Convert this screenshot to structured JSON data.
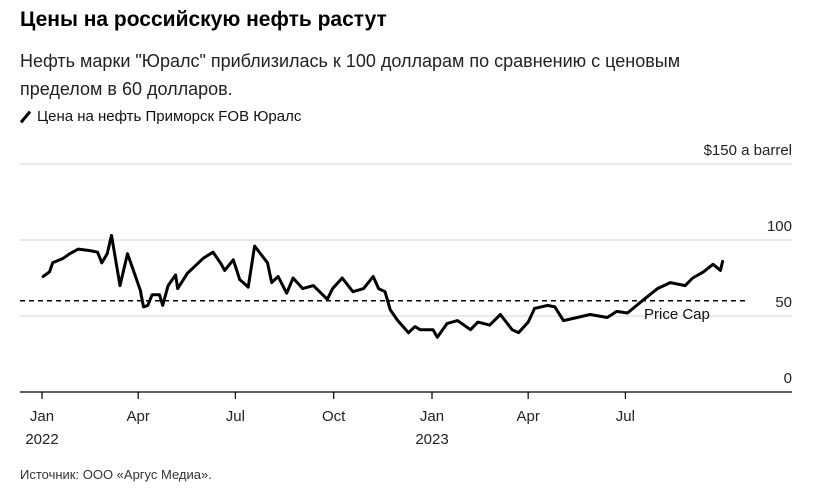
{
  "title": "Цены на российскую нефть растут",
  "subtitle": "Нефть марки \"Юралс\" приблизилась к 100 долларам по сравнению с ценовым пределом в 60 долларов.",
  "source": "Источник: ООО «Аргус Медиа».",
  "chart_data": {
    "type": "line",
    "title": "Цены на российскую нефть растут",
    "legend": [
      "Цена на нефть Приморск FOB Юралс"
    ],
    "legend_placement": "top-left",
    "y_unit_label": "$150 a barrel",
    "ylim": [
      0,
      150
    ],
    "y_ticks": [
      {
        "value": 150,
        "label": "$150 a barrel"
      },
      {
        "value": 100,
        "label": "100"
      },
      {
        "value": 50,
        "label": "50"
      },
      {
        "value": 0,
        "label": "0"
      }
    ],
    "xlim": [
      "2022-01-01",
      "2023-10-31"
    ],
    "x_ticks": [
      {
        "date": "2022-01-01",
        "label": "Jan",
        "year": "2022"
      },
      {
        "date": "2022-04-01",
        "label": "Apr",
        "year": ""
      },
      {
        "date": "2022-07-01",
        "label": "Jul",
        "year": ""
      },
      {
        "date": "2022-10-01",
        "label": "Oct",
        "year": ""
      },
      {
        "date": "2023-01-01",
        "label": "Jan",
        "year": "2023"
      },
      {
        "date": "2023-04-01",
        "label": "Apr",
        "year": ""
      },
      {
        "date": "2023-07-01",
        "label": "Jul",
        "year": ""
      }
    ],
    "grid": true,
    "reference_line": {
      "label": "Price Cap",
      "value": 60,
      "style": "dashed"
    },
    "series": [
      {
        "name": "Цена на нефть Приморск FOB Юралс",
        "color": "#000000",
        "points": [
          [
            "2022-01-02",
            76
          ],
          [
            "2022-01-08",
            79
          ],
          [
            "2022-01-11",
            85
          ],
          [
            "2022-01-21",
            88
          ],
          [
            "2022-01-27",
            91
          ],
          [
            "2022-02-04",
            94
          ],
          [
            "2022-02-15",
            93
          ],
          [
            "2022-02-22",
            92
          ],
          [
            "2022-02-26",
            85
          ],
          [
            "2022-03-03",
            91
          ],
          [
            "2022-03-07",
            103
          ],
          [
            "2022-03-15",
            70
          ],
          [
            "2022-03-22",
            91
          ],
          [
            "2022-03-29",
            77
          ],
          [
            "2022-04-03",
            67
          ],
          [
            "2022-04-06",
            56
          ],
          [
            "2022-04-10",
            57
          ],
          [
            "2022-04-14",
            64
          ],
          [
            "2022-04-21",
            64
          ],
          [
            "2022-04-24",
            57
          ],
          [
            "2022-04-29",
            70
          ],
          [
            "2022-05-06",
            77
          ],
          [
            "2022-05-08",
            68
          ],
          [
            "2022-05-17",
            78
          ],
          [
            "2022-05-26",
            84
          ],
          [
            "2022-06-01",
            88
          ],
          [
            "2022-06-10",
            92
          ],
          [
            "2022-06-17",
            85
          ],
          [
            "2022-06-21",
            80
          ],
          [
            "2022-06-29",
            87
          ],
          [
            "2022-07-05",
            74
          ],
          [
            "2022-07-13",
            69
          ],
          [
            "2022-07-19",
            96
          ],
          [
            "2022-07-31",
            85
          ],
          [
            "2022-08-04",
            72
          ],
          [
            "2022-08-10",
            76
          ],
          [
            "2022-08-18",
            65
          ],
          [
            "2022-08-24",
            75
          ],
          [
            "2022-09-02",
            68
          ],
          [
            "2022-09-12",
            70
          ],
          [
            "2022-09-25",
            61
          ],
          [
            "2022-09-30",
            68
          ],
          [
            "2022-10-09",
            75
          ],
          [
            "2022-10-19",
            66
          ],
          [
            "2022-10-29",
            68
          ],
          [
            "2022-11-07",
            76
          ],
          [
            "2022-11-12",
            68
          ],
          [
            "2022-11-18",
            66
          ],
          [
            "2022-11-23",
            54
          ],
          [
            "2022-11-30",
            47
          ],
          [
            "2022-12-10",
            39
          ],
          [
            "2022-12-16",
            43
          ],
          [
            "2022-12-21",
            41
          ],
          [
            "2023-01-02",
            41
          ],
          [
            "2023-01-06",
            36
          ],
          [
            "2023-01-15",
            45
          ],
          [
            "2023-01-25",
            47
          ],
          [
            "2023-02-06",
            41
          ],
          [
            "2023-02-13",
            46
          ],
          [
            "2023-02-24",
            44
          ],
          [
            "2023-03-06",
            51
          ],
          [
            "2023-03-17",
            41
          ],
          [
            "2023-03-23",
            39
          ],
          [
            "2023-04-01",
            46
          ],
          [
            "2023-04-07",
            55
          ],
          [
            "2023-04-19",
            57
          ],
          [
            "2023-04-26",
            56
          ],
          [
            "2023-05-04",
            47
          ],
          [
            "2023-05-17",
            49
          ],
          [
            "2023-05-29",
            51
          ],
          [
            "2023-06-14",
            49
          ],
          [
            "2023-06-23",
            53
          ],
          [
            "2023-07-03",
            52
          ],
          [
            "2023-07-15",
            59
          ],
          [
            "2023-07-31",
            68
          ],
          [
            "2023-08-12",
            72
          ],
          [
            "2023-08-26",
            70
          ],
          [
            "2023-09-02",
            75
          ],
          [
            "2023-09-12",
            79
          ],
          [
            "2023-09-21",
            84
          ],
          [
            "2023-09-28",
            80
          ],
          [
            "2023-09-30",
            86
          ]
        ]
      }
    ]
  }
}
